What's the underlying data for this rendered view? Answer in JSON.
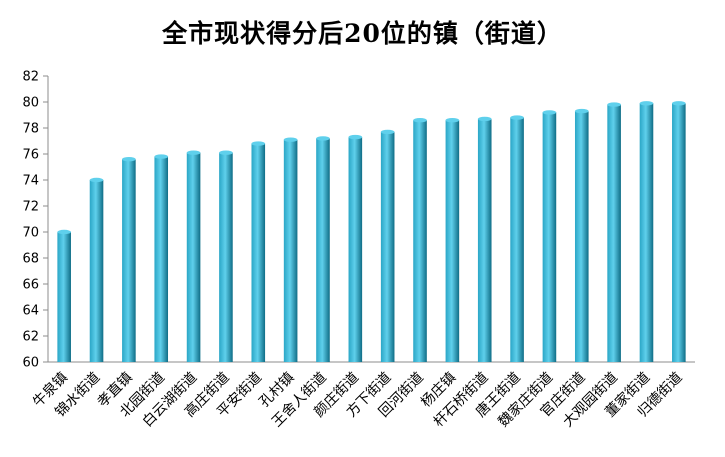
{
  "chart_data": {
    "type": "bar",
    "title": "全市现状得分后20位的镇（街道）",
    "categories": [
      "牛泉镇",
      "锦水街道",
      "孝直镇",
      "北园街道",
      "白云湖街道",
      "高庄街道",
      "平安街道",
      "孔村镇",
      "王舍人街道",
      "颜庄街道",
      "方下街道",
      "回河街道",
      "杨庄镇",
      "杆石桥街道",
      "唐王街道",
      "魏家庄街道",
      "官庄街道",
      "大观园街道",
      "董家街道",
      "归德街道"
    ],
    "values": [
      70.0,
      74.0,
      75.6,
      75.8,
      76.1,
      76.1,
      76.8,
      77.1,
      77.2,
      77.3,
      77.7,
      78.6,
      78.6,
      78.7,
      78.8,
      79.2,
      79.3,
      79.8,
      79.9,
      79.9
    ],
    "ylim": [
      60,
      82
    ],
    "yticks": [
      "60",
      "62",
      "64",
      "66",
      "68",
      "70",
      "72",
      "74",
      "76",
      "78",
      "80",
      "82"
    ],
    "xlabel": "",
    "ylabel": "",
    "grid": false,
    "legend": "none",
    "colors": {
      "bar_light": "#5fd0ec",
      "bar_mid": "#2aa6c6",
      "bar_dark": "#0f6d86",
      "axis": "#8c8c8c"
    }
  }
}
